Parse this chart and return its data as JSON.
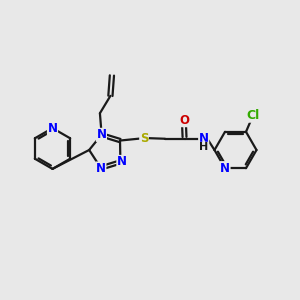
{
  "background_color": "#e8e8e8",
  "bond_color": "#1a1a1a",
  "N_color": "#0000ff",
  "O_color": "#cc0000",
  "S_color": "#aaaa00",
  "Cl_color": "#33aa00",
  "figsize": [
    3.0,
    3.0
  ],
  "dpi": 100,
  "lw": 1.6,
  "fs": 8.5,
  "xlim": [
    0,
    10
  ],
  "ylim": [
    0,
    10
  ]
}
